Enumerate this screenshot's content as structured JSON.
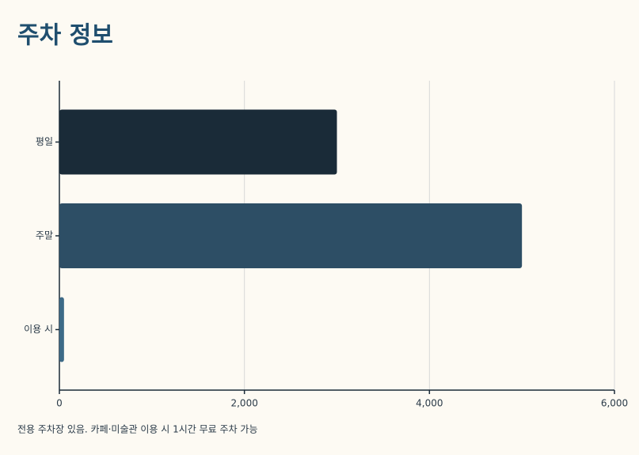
{
  "chart_data": {
    "type": "barh",
    "title": "주차 정보",
    "categories": [
      "평일",
      "주말",
      "이용 시"
    ],
    "values": [
      3000,
      5000,
      50
    ],
    "colors": [
      "#1a2b38",
      "#2d4e65",
      "#3d6a87"
    ],
    "xlim": [
      0,
      6000
    ],
    "xticks": [
      0,
      {
        "value": 2000,
        "label": "2,000"
      },
      {
        "value": 4000,
        "label": "4,000"
      },
      {
        "value": 6000,
        "label": "6,000"
      }
    ],
    "grid": true,
    "note": "전용 주차장 있음. 카페·미술관 이용 시 1시간 무료 주차 가능"
  }
}
